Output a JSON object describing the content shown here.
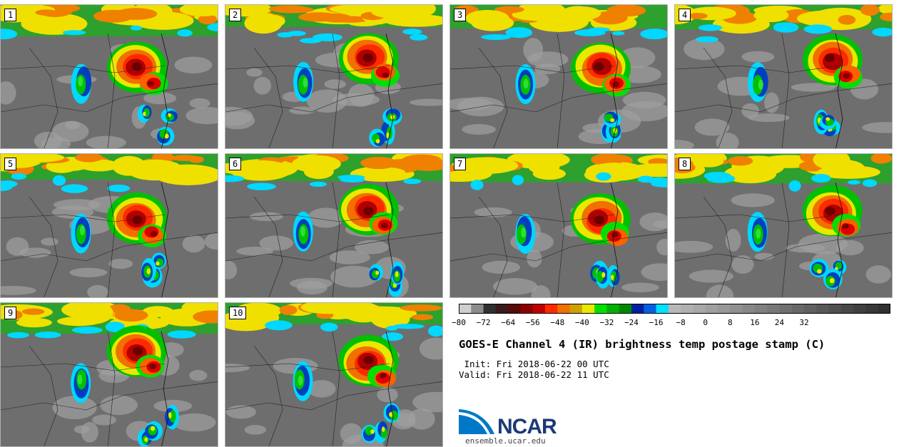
{
  "panels": [
    {
      "label": "1"
    },
    {
      "label": "2"
    },
    {
      "label": "3"
    },
    {
      "label": "4"
    },
    {
      "label": "5"
    },
    {
      "label": "6"
    },
    {
      "label": "7"
    },
    {
      "label": "8"
    },
    {
      "label": "9"
    },
    {
      "label": "10"
    }
  ],
  "colorbar": {
    "tick_labels": [
      "−80",
      "−72",
      "−64",
      "−56",
      "−48",
      "−40",
      "−32",
      "−24",
      "−16",
      "−8",
      "0",
      "8",
      "16",
      "24",
      "32"
    ],
    "colors": [
      "#cfcfcf",
      "#8c8c8c",
      "#303030",
      "#3a1a1a",
      "#5a0a0a",
      "#8c0000",
      "#c00000",
      "#ff2a00",
      "#f07000",
      "#d0a000",
      "#e8e800",
      "#00e000",
      "#00b000",
      "#008800",
      "#0020a0",
      "#0060e0",
      "#00e0ff",
      "#b8b8b8",
      "#b0b0b0",
      "#a8a8a8",
      "#a0a0a0",
      "#989898",
      "#909090",
      "#888888",
      "#808080",
      "#787878",
      "#707070",
      "#686868",
      "#606060",
      "#585858",
      "#505050",
      "#484848",
      "#404040",
      "#383838",
      "#303030"
    ]
  },
  "title": "GOES-E Channel 4 (IR) brightness temp postage stamp (C)",
  "init_line": " Init: Fri 2018-06-22 00 UTC",
  "valid_line": "Valid: Fri 2018-06-22 11 UTC",
  "logo": {
    "text": "NCAR",
    "url": "ensemble.ucar.edu",
    "color": "#1a3a78",
    "swoosh_color": "#0078c8"
  }
}
